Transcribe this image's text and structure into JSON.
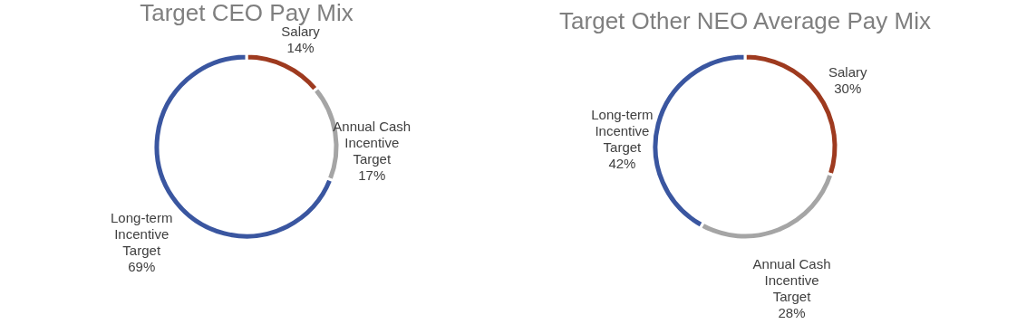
{
  "chart_data": [
    {
      "type": "donut",
      "title": "Target CEO Pay Mix",
      "categories": [
        "Salary",
        "Annual Cash Incentive Target",
        "Long-term Incentive Target"
      ],
      "values": [
        14,
        17,
        69
      ],
      "colors": [
        "#9e3a1f",
        "#a5a5a5",
        "#3a56a0"
      ],
      "value_labels": [
        "14%",
        "17%",
        "69%"
      ],
      "legend": false
    },
    {
      "type": "donut",
      "title": "Target Other NEO Average Pay Mix",
      "categories": [
        "Salary",
        "Annual Cash Incentive Target",
        "Long-term Incentive Target"
      ],
      "values": [
        30,
        28,
        42
      ],
      "colors": [
        "#9e3a1f",
        "#a5a5a5",
        "#3a56a0"
      ],
      "value_labels": [
        "30%",
        "28%",
        "42%"
      ],
      "legend": false
    }
  ]
}
